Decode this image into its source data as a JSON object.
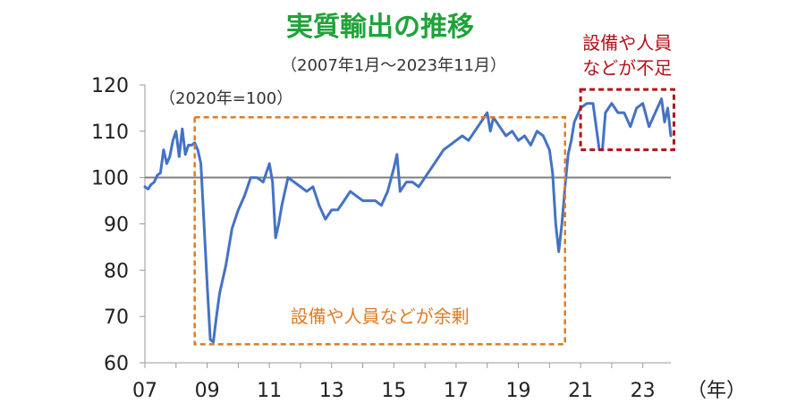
{
  "chart_data": {
    "type": "line",
    "title": "実質輸出の推移",
    "subtitle": "（2007年1月～2023年11月）",
    "base_note": "（2020年=100）",
    "x_unit": "（年）",
    "xlabel": "",
    "ylabel": "",
    "ylim": [
      60,
      120
    ],
    "xlim": [
      2007.0,
      2023.9
    ],
    "y_ticks": [
      "60",
      "70",
      "80",
      "90",
      "100",
      "110",
      "120"
    ],
    "x_ticks": [
      "07",
      "09",
      "11",
      "13",
      "15",
      "17",
      "19",
      "21",
      "23"
    ],
    "reference_line": 100,
    "grid": false,
    "series": [
      {
        "name": "",
        "color": "#4472c4",
        "x": [
          2007.0,
          2007.1,
          2007.2,
          2007.3,
          2007.4,
          2007.5,
          2007.6,
          2007.7,
          2007.8,
          2007.9,
          2008.0,
          2008.1,
          2008.2,
          2008.3,
          2008.4,
          2008.5,
          2008.6,
          2008.7,
          2008.8,
          2008.9,
          2009.0,
          2009.1,
          2009.2,
          2009.3,
          2009.4,
          2009.6,
          2009.8,
          2010.0,
          2010.2,
          2010.4,
          2010.6,
          2010.8,
          2011.0,
          2011.1,
          2011.2,
          2011.3,
          2011.4,
          2011.6,
          2011.8,
          2012.0,
          2012.2,
          2012.4,
          2012.6,
          2012.8,
          2013.0,
          2013.2,
          2013.4,
          2013.6,
          2013.8,
          2014.0,
          2014.2,
          2014.4,
          2014.6,
          2014.8,
          2015.0,
          2015.1,
          2015.2,
          2015.4,
          2015.6,
          2015.8,
          2016.0,
          2016.2,
          2016.4,
          2016.6,
          2016.8,
          2017.0,
          2017.2,
          2017.4,
          2017.6,
          2017.8,
          2017.9,
          2018.0,
          2018.1,
          2018.2,
          2018.4,
          2018.6,
          2018.8,
          2019.0,
          2019.2,
          2019.4,
          2019.6,
          2019.8,
          2020.0,
          2020.1,
          2020.2,
          2020.3,
          2020.4,
          2020.5,
          2020.6,
          2020.7,
          2020.8,
          2021.0,
          2021.2,
          2021.4,
          2021.6,
          2021.7,
          2021.8,
          2021.9,
          2022.0,
          2022.2,
          2022.4,
          2022.6,
          2022.8,
          2023.0,
          2023.2,
          2023.4,
          2023.6,
          2023.7,
          2023.8,
          2023.9
        ],
        "values": [
          98,
          97.5,
          98.5,
          99,
          100.5,
          101,
          106,
          103,
          104.5,
          108,
          110,
          104.5,
          110.5,
          105,
          107,
          107,
          107.5,
          106,
          103,
          90,
          77,
          65,
          64.5,
          70,
          75,
          81,
          89,
          93,
          96,
          100,
          100,
          99,
          103,
          99,
          87,
          90,
          94,
          100,
          99,
          98,
          97,
          98,
          94,
          91,
          93,
          93,
          95,
          97,
          96,
          95,
          95,
          95,
          94,
          97,
          102,
          105,
          97,
          99,
          99,
          98,
          100,
          102,
          104,
          106,
          107,
          108,
          109,
          108,
          110,
          112,
          113,
          114,
          110,
          113,
          111,
          109,
          110,
          108,
          109,
          107,
          110,
          109,
          106,
          101,
          90,
          84,
          90,
          98,
          105,
          108,
          112,
          115,
          116,
          116,
          106,
          106,
          114,
          115,
          116,
          114,
          114,
          111,
          115,
          116,
          111,
          114,
          117,
          112,
          115,
          109
        ]
      }
    ],
    "annotations": [
      {
        "label": "設備や人員などが余剰",
        "x_range": [
          2008.6,
          2020.5
        ],
        "y_range": [
          64,
          113
        ],
        "color": "#e07b22"
      },
      {
        "label_line1": "設備や人員",
        "label_line2": "などが不足",
        "x_range": [
          2021.0,
          2024.0
        ],
        "y_range": [
          106,
          119
        ],
        "color": "#b3121b"
      }
    ]
  }
}
